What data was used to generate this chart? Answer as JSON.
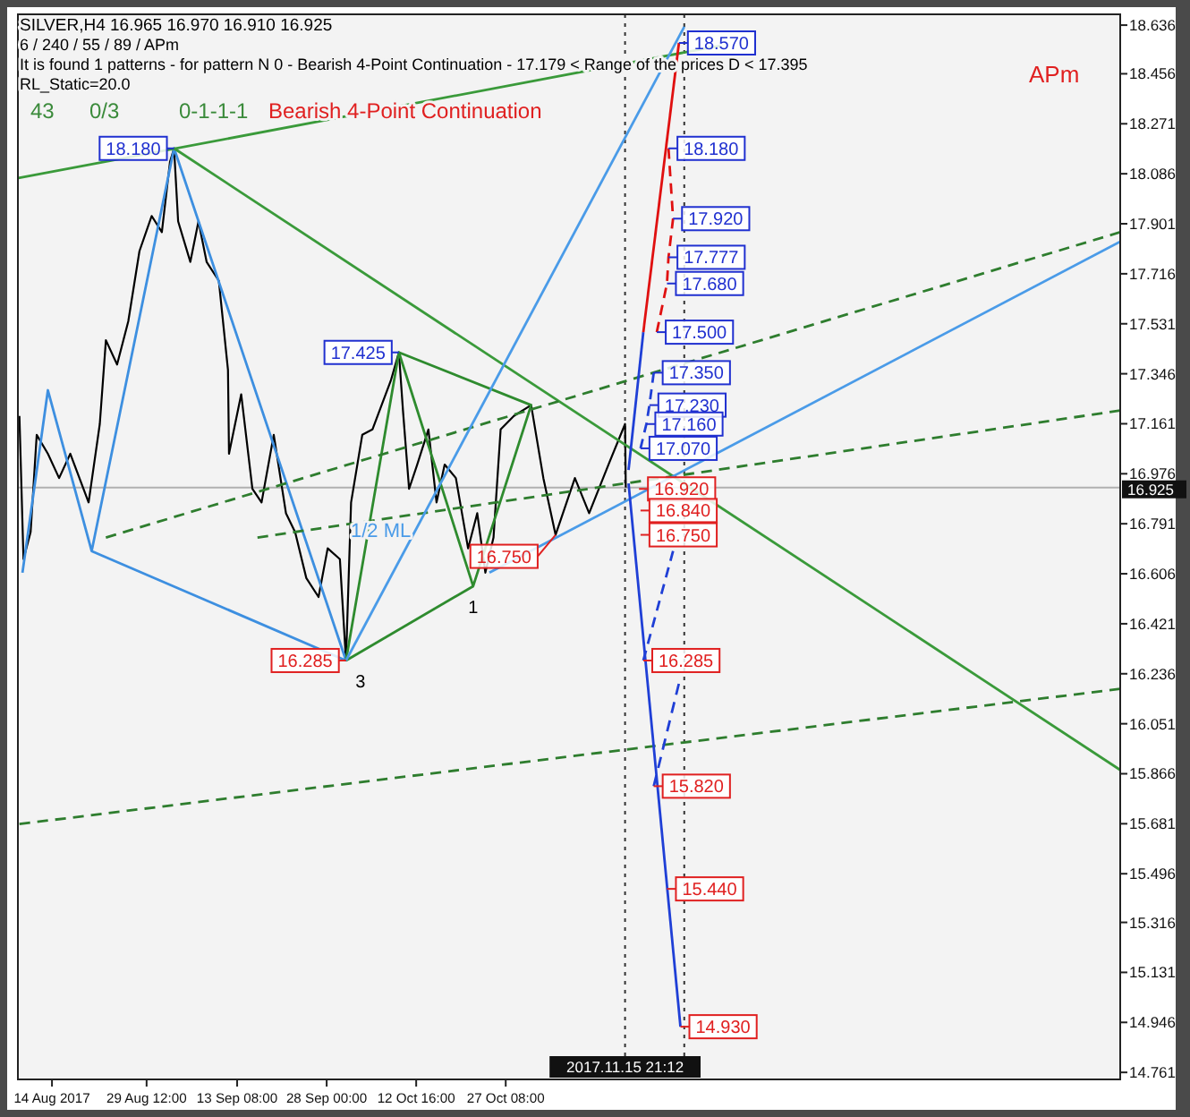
{
  "chart_data": {
    "type": "line",
    "title": "SILVER,H4  16.965 16.970 16.910 16.925",
    "subtitle": "6 / 240 / 55 / 89 / APm",
    "xlim": [
      "2017-08-08T10:00",
      "2018-02-05T00:00"
    ],
    "ylim": [
      14.735,
      18.676
    ],
    "xticks": [
      {
        "value": "2017-08-14T00:00",
        "label": "14 Aug 2017"
      },
      {
        "value": "2017-08-29T12:00",
        "label": "29 Aug 12:00"
      },
      {
        "value": "2017-09-13T08:00",
        "label": "13 Sep 08:00"
      },
      {
        "value": "2017-09-28T00:00",
        "label": "28 Sep 00:00"
      },
      {
        "value": "2017-10-12T16:00",
        "label": "12 Oct 16:00"
      },
      {
        "value": "2017-10-27T08:00",
        "label": "27 Oct 08:00"
      }
    ],
    "yticks": [
      18.636,
      18.456,
      18.271,
      18.086,
      17.901,
      17.716,
      17.531,
      17.346,
      17.161,
      16.976,
      16.791,
      16.606,
      16.421,
      16.236,
      16.051,
      15.866,
      15.681,
      15.496,
      15.316,
      15.131,
      14.946,
      14.761
    ],
    "ref_lines": [
      {
        "axis": "y",
        "value": 16.925,
        "label": "16.925",
        "color": "#b0b0b0"
      },
      {
        "axis": "x",
        "value": "2017-11-15T21:12",
        "label": "2017.11.15 21:12",
        "color": "#333333",
        "line_style": "dotted"
      },
      {
        "axis": "x",
        "value": "2017-11-25T14:00",
        "color": "#333333",
        "line_style": "dotted"
      }
    ],
    "series": [
      {
        "color": "#000000",
        "x": [
          "2017-08-08T16:00",
          "2017-08-09T08:00",
          "2017-08-10T12:00",
          "2017-08-11T12:00",
          "2017-08-13T08:00",
          "2017-08-15T04:00",
          "2017-08-17T00:00",
          "2017-08-20T00:00",
          "2017-08-21T20:00",
          "2017-08-22T20:00",
          "2017-08-24T16:00",
          "2017-08-26T12:00",
          "2017-08-28T08:00",
          "2017-08-30T08:00",
          "2017-09-01T00:00",
          "2017-09-02T08:00",
          "2017-09-03T00:00",
          "2017-09-03T16:00",
          "2017-09-05T16:00",
          "2017-09-07T00:00",
          "2017-09-08T08:00",
          "2017-09-10T08:00",
          "2017-09-11T20:00",
          "2017-09-12T00:00",
          "2017-09-14T00:00",
          "2017-09-15T20:00",
          "2017-09-17T08:00",
          "2017-09-19T08:00",
          "2017-09-21T08:00",
          "2017-09-22T20:00",
          "2017-09-24T16:00",
          "2017-09-26T16:00",
          "2017-09-28T04:00",
          "2017-09-30T04:00",
          "2017-10-01T04:00",
          "2017-10-02T00:00",
          "2017-10-03T20:00",
          "2017-10-05T12:00",
          "2017-10-08T12:00",
          "2017-10-09T20:00",
          "2017-10-10T12:00",
          "2017-10-11T12:00",
          "2017-10-12T20:00",
          "2017-10-14T16:00",
          "2017-10-16T00:00",
          "2017-10-17T08:00",
          "2017-10-19T04:00",
          "2017-10-21T04:00",
          "2017-10-22T16:00",
          "2017-10-24T00:00",
          "2017-10-25T08:00",
          "2017-10-26T12:00",
          "2017-10-28T16:00",
          "2017-10-31T12:00",
          "2017-11-02T12:00",
          "2017-11-04T12:00",
          "2017-11-07T16:00",
          "2017-11-10T00:00",
          "2017-11-13T04:00",
          "2017-11-15T21:12",
          "2017-11-16T00:00"
        ],
        "values": [
          17.19,
          16.66,
          16.76,
          17.12,
          17.05,
          16.96,
          17.05,
          16.87,
          17.16,
          17.47,
          17.38,
          17.54,
          17.8,
          17.93,
          17.87,
          18.13,
          18.18,
          17.91,
          17.76,
          17.91,
          17.76,
          17.69,
          17.36,
          17.05,
          17.27,
          16.92,
          16.87,
          17.12,
          16.83,
          16.76,
          16.59,
          16.52,
          16.7,
          16.66,
          16.285,
          16.87,
          17.12,
          17.14,
          17.32,
          17.425,
          17.21,
          16.92,
          17.01,
          17.14,
          16.87,
          17.01,
          16.96,
          16.7,
          16.83,
          16.61,
          16.74,
          17.14,
          17.19,
          17.23,
          16.96,
          16.75,
          16.96,
          16.83,
          17.01,
          17.16,
          16.925
        ]
      },
      {
        "color": "#3d8fe0",
        "x": [
          "2017-08-09T04:00",
          "2017-08-13T08:00",
          "2017-08-20T12:00",
          "2017-09-03T00:00",
          "2017-10-01T04:00"
        ],
        "values": [
          16.61,
          17.285,
          16.69,
          18.18,
          16.285
        ]
      },
      {
        "color": "#3d8fe0",
        "x": [
          "2017-08-20T12:00",
          "2017-10-01T04:00"
        ],
        "values": [
          16.69,
          16.285
        ]
      },
      {
        "color": "#2e8b2e",
        "x": [
          "2017-10-01T04:00",
          "2017-10-09T20:00",
          "2017-10-22T00:00",
          "2017-10-31T12:00",
          "2017-10-09T20:00"
        ],
        "values": [
          16.285,
          17.425,
          16.56,
          17.23,
          17.425
        ]
      },
      {
        "color": "#2e8b2e",
        "x": [
          "2017-10-01T04:00",
          "2017-10-22T00:00"
        ],
        "values": [
          16.285,
          16.56
        ]
      },
      {
        "color": "#3a9a3a",
        "x": [
          "2017-08-08T12:00",
          "2017-12-01T12:00"
        ],
        "values": [
          18.07,
          18.56
        ]
      },
      {
        "color": "#3a9a3a",
        "x": [
          "2017-09-03T00:00",
          "2018-02-05T00:00"
        ],
        "values": [
          18.18,
          15.88
        ]
      },
      {
        "color": "#2e7d2e",
        "line_style": "dashed",
        "x": [
          "2017-08-22T20:00",
          "2018-02-05T00:00"
        ],
        "values": [
          16.74,
          17.87
        ]
      },
      {
        "color": "#2e7d2e",
        "line_style": "dashed",
        "x": [
          "2017-09-16T16:00",
          "2018-02-05T00:00"
        ],
        "values": [
          16.74,
          17.21
        ]
      },
      {
        "color": "#2e7d2e",
        "line_style": "dashed",
        "x": [
          "2017-08-08T16:00",
          "2018-02-05T00:00"
        ],
        "values": [
          15.68,
          16.18
        ]
      },
      {
        "color": "#4a9be8",
        "x": [
          "2017-10-01T04:00",
          "2017-11-25T14:00"
        ],
        "values": [
          16.285,
          18.63
        ]
      },
      {
        "color": "#4a9be8",
        "x": [
          "2017-10-24T16:00",
          "2018-02-05T00:00"
        ],
        "values": [
          16.61,
          17.835
        ]
      },
      {
        "color": "#1f3fd6",
        "x": [
          "2017-11-16T11:00",
          "2017-11-18T21:00"
        ],
        "values": [
          16.99,
          17.5
        ]
      },
      {
        "color": "#e01010",
        "x": [
          "2017-11-18T21:00",
          "2017-11-24T17:00"
        ],
        "values": [
          17.5,
          18.57
        ]
      },
      {
        "color": "#e01010",
        "line_style": "dashed",
        "x": [
          "2017-11-23T00:00",
          "2017-11-23T18:00",
          "2017-11-23T00:00",
          "2017-11-22T18:00",
          "2017-11-21T02:00"
        ],
        "values": [
          18.18,
          17.92,
          17.777,
          17.68,
          17.5
        ]
      },
      {
        "color": "#1f3fd6",
        "line_style": "dashed",
        "x": [
          "2017-11-20T14:00",
          "2017-11-19T21:00",
          "2017-11-19T09:00",
          "2017-11-18T10:00"
        ],
        "values": [
          17.35,
          17.23,
          17.16,
          17.07
        ]
      },
      {
        "color": "#1f3fd6",
        "x": [
          "2017-11-16T11:00",
          "2017-11-24T23:00"
        ],
        "values": [
          16.94,
          14.93
        ]
      },
      {
        "color": "#1f3fd6",
        "line_style": "dashed",
        "x": [
          "2017-11-18T21:00",
          "2017-11-23T18:00"
        ],
        "values": [
          16.285,
          16.69
        ]
      },
      {
        "color": "#1f3fd6",
        "line_style": "dashed",
        "x": [
          "2017-11-20T14:00",
          "2017-11-24T17:00"
        ],
        "values": [
          15.82,
          16.2
        ]
      }
    ],
    "annotations": [
      "It is found 1 patterns  -  for pattern N 0 - Bearish 4-Point Continuation - 17.179 < Range of the prices D < 17.395",
      "RL_Static=20.0",
      "43",
      "0/3",
      "0-1-1-1",
      "Bearish 4-Point Continuation",
      "APm",
      "1/2 ML",
      {
        "text": "18.180",
        "x": "2017-09-03T00:00",
        "y": 18.18
      },
      {
        "text": "17.425",
        "x": "2017-10-09T20:00",
        "y": 17.425
      },
      {
        "text": "16.285",
        "x": "2017-10-01T04:00",
        "y": 16.285
      },
      {
        "text": "16.750",
        "x": "2017-11-04T12:00",
        "y": 16.75
      },
      {
        "text": "3",
        "x": "2017-10-01T04:00",
        "y": 16.285
      },
      {
        "text": "1",
        "x": "2017-10-22T00:00",
        "y": 16.56
      },
      {
        "text": "18.570",
        "x": "2017-11-24T17:00",
        "y": 18.57
      },
      {
        "text": "18.180",
        "x": "2017-11-23T00:00",
        "y": 18.18
      },
      {
        "text": "17.920",
        "x": "2017-11-23T18:00",
        "y": 17.92
      },
      {
        "text": "17.777",
        "x": "2017-11-23T00:00",
        "y": 17.777
      },
      {
        "text": "17.680",
        "x": "2017-11-22T18:00",
        "y": 17.68
      },
      {
        "text": "17.500",
        "x": "2017-11-21T02:00",
        "y": 17.5
      },
      {
        "text": "17.350",
        "x": "2017-11-20T14:00",
        "y": 17.35
      },
      {
        "text": "17.230",
        "x": "2017-11-19T21:00",
        "y": 17.23
      },
      {
        "text": "17.160",
        "x": "2017-11-19T09:00",
        "y": 17.16
      },
      {
        "text": "17.070",
        "x": "2017-11-18T10:00",
        "y": 17.07
      },
      {
        "text": "16.920",
        "x": "2017-11-18T04:00",
        "y": 16.92
      },
      {
        "text": "16.840",
        "x": "2017-11-18T10:00",
        "y": 16.84
      },
      {
        "text": "16.750",
        "x": "2017-11-18T10:00",
        "y": 16.75
      },
      {
        "text": "16.285",
        "x": "2017-11-18T21:00",
        "y": 16.285
      },
      {
        "text": "15.820",
        "x": "2017-11-20T14:00",
        "y": 15.82
      },
      {
        "text": "15.440",
        "x": "2017-11-22T18:00",
        "y": 15.44
      },
      {
        "text": "14.930",
        "x": "2017-11-24T23:00",
        "y": 14.93
      }
    ]
  }
}
